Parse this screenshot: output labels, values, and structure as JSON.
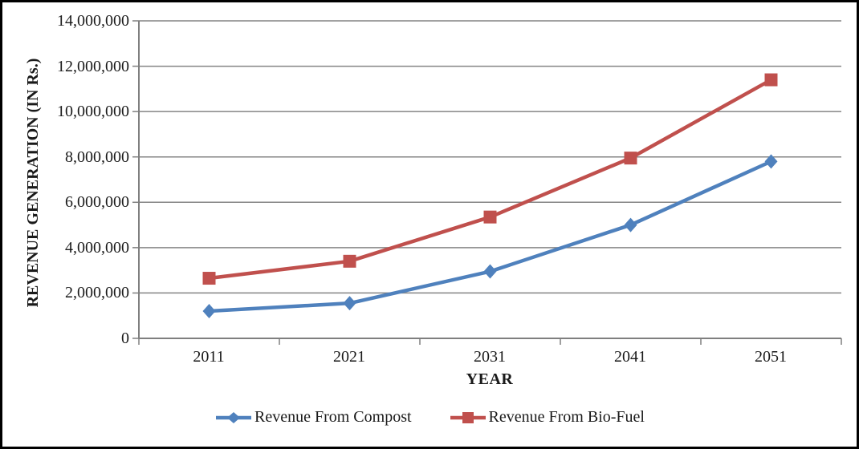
{
  "figure": {
    "background": "#ffffff",
    "border_color": "#000000"
  },
  "chart_data": {
    "type": "line",
    "title": "",
    "xlabel": "YEAR",
    "ylabel": "REVENUE GENERATION (IN Rs.)",
    "categories": [
      "2011",
      "2021",
      "2031",
      "2041",
      "2051"
    ],
    "series": [
      {
        "name": "Revenue From Compost",
        "marker": "diamond",
        "color": "#4F81BD",
        "values": [
          1200000,
          1550000,
          2950000,
          5000000,
          7800000
        ]
      },
      {
        "name": "Revenue From Bio-Fuel",
        "marker": "square",
        "color": "#C0504D",
        "values": [
          2650000,
          3400000,
          5350000,
          7950000,
          11400000
        ]
      }
    ],
    "ylim": [
      0,
      14000000
    ],
    "ytick_step": 2000000,
    "yticks": [
      0,
      2000000,
      4000000,
      6000000,
      8000000,
      10000000,
      12000000,
      14000000
    ],
    "ytick_labels": [
      "14,000,000",
      "12,000,000",
      "10,000,000",
      "8,000,000",
      "6,000,000",
      "4,000,000",
      "2,000,000",
      "0"
    ],
    "grid": true,
    "grid_color": "#848484",
    "axis_color": "#7f7f7f",
    "legend_position": "bottom"
  }
}
